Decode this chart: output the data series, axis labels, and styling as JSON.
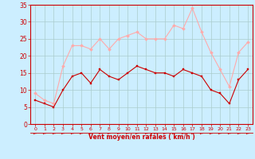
{
  "x": [
    0,
    1,
    2,
    3,
    4,
    5,
    6,
    7,
    8,
    9,
    10,
    11,
    12,
    13,
    14,
    15,
    16,
    17,
    18,
    19,
    20,
    21,
    22,
    23
  ],
  "wind_avg": [
    7,
    6,
    5,
    10,
    14,
    15,
    12,
    16,
    14,
    13,
    15,
    17,
    16,
    15,
    15,
    14,
    16,
    15,
    14,
    10,
    9,
    6,
    13,
    16
  ],
  "wind_gust": [
    9,
    7,
    6,
    17,
    23,
    23,
    22,
    25,
    22,
    25,
    26,
    27,
    25,
    25,
    25,
    29,
    28,
    34,
    27,
    21,
    16,
    11,
    21,
    24
  ],
  "avg_color": "#cc0000",
  "gust_color": "#ffaaaa",
  "bg_color": "#cceeff",
  "grid_color": "#aacccc",
  "xlabel": "Vent moyen/en rafales ( km/h )",
  "xlabel_color": "#cc0000",
  "tick_color": "#cc0000",
  "spine_color": "#cc0000",
  "ylim": [
    0,
    35
  ],
  "yticks": [
    0,
    5,
    10,
    15,
    20,
    25,
    30,
    35
  ],
  "xlim": [
    -0.5,
    23.5
  ]
}
